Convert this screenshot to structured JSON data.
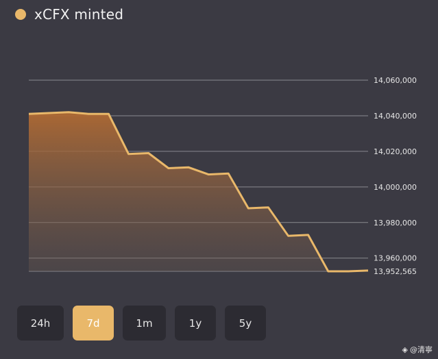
{
  "legend": {
    "label": "xCFX minted",
    "color": "#e9b86a"
  },
  "range_buttons": [
    {
      "label": "24h",
      "active": false
    },
    {
      "label": "7d",
      "active": true
    },
    {
      "label": "1m",
      "active": false
    },
    {
      "label": "1y",
      "active": false
    },
    {
      "label": "5y",
      "active": false
    }
  ],
  "watermark": {
    "text": "@清寧",
    "icon": "diamond-logo-icon"
  },
  "colors": {
    "background": "#3b3a43",
    "line": "#e9b86a",
    "fill_top": "#b06a33",
    "grid": "#8a8990",
    "button_bg": "#2c2b32",
    "button_active": "#e9b86a"
  },
  "chart_data": {
    "type": "area",
    "title": "",
    "xlabel": "",
    "ylabel": "",
    "grid": true,
    "ylim": [
      13952565,
      14060000
    ],
    "y_ticks": [
      {
        "value": 14060000,
        "label": "14,060,000"
      },
      {
        "value": 14040000,
        "label": "14,040,000"
      },
      {
        "value": 14020000,
        "label": "14,020,000"
      },
      {
        "value": 14000000,
        "label": "14,000,000"
      },
      {
        "value": 13980000,
        "label": "13,980,000"
      },
      {
        "value": 13960000,
        "label": "13,960,000"
      },
      {
        "value": 13952565,
        "label": "13,952,565"
      }
    ],
    "series": [
      {
        "values": [
          14041000,
          14041500,
          14042000,
          14041000,
          14041000,
          14018500,
          14019000,
          14010500,
          14011000,
          14007000,
          14007500,
          13988000,
          13988500,
          13972500,
          13973000,
          13952565,
          13952565,
          13953000
        ]
      }
    ]
  }
}
